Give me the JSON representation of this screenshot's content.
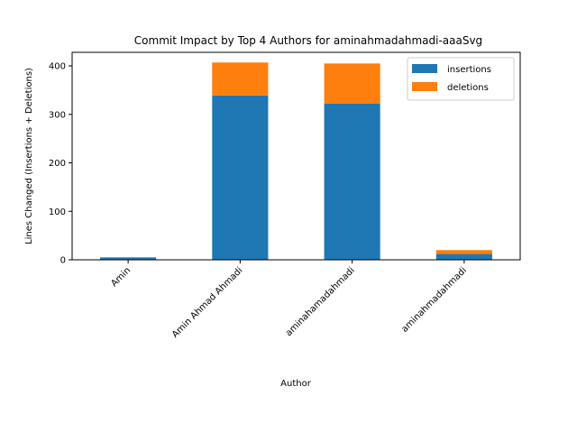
{
  "chart_data": {
    "type": "bar",
    "stacked": true,
    "title": "Commit Impact by Top 4 Authors for aminahmadahmadi-aaaSvg",
    "xlabel": "Author",
    "ylabel": "Lines Changed (Insertions + Deletions)",
    "categories": [
      "Amin",
      "Amin Ahmad Ahmadi",
      "aminahamadahmadi",
      "aminahmadahmadi"
    ],
    "series": [
      {
        "name": "insertions",
        "color": "#1f77b4",
        "values": [
          5,
          339,
          322,
          12
        ]
      },
      {
        "name": "deletions",
        "color": "#ff7f0e",
        "values": [
          0,
          68,
          83,
          8
        ]
      }
    ],
    "ylim": [
      0,
      428
    ],
    "yticks": [
      0,
      100,
      200,
      300,
      400
    ],
    "legend_position": "top-right",
    "grid": false
  }
}
